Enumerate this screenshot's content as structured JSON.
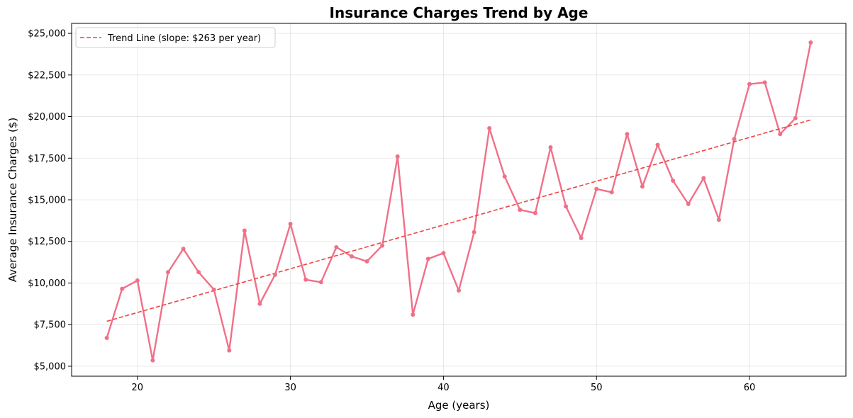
{
  "chart_data": {
    "type": "line",
    "title": "Insurance Charges Trend by Age",
    "xlabel": "Age (years)",
    "ylabel": "Average Insurance Charges ($)",
    "xlim": [
      15.7,
      66.3
    ],
    "ylim": [
      4400,
      25600
    ],
    "x_ticks": [
      20,
      30,
      40,
      50,
      60
    ],
    "y_ticks": [
      5000,
      7500,
      10000,
      12500,
      15000,
      17500,
      20000,
      22500,
      25000
    ],
    "y_tick_labels": [
      "$5,000",
      "$7,500",
      "$10,000",
      "$12,500",
      "$15,000",
      "$17,500",
      "$20,000",
      "$22,500",
      "$25,000"
    ],
    "grid": true,
    "legend_position": "top-left",
    "series": [
      {
        "x": [
          18,
          19,
          20,
          21,
          22,
          23,
          24,
          25,
          26,
          27,
          28,
          29,
          30,
          31,
          32,
          33,
          34,
          35,
          36,
          37,
          38,
          39,
          40,
          41,
          42,
          43,
          44,
          45,
          46,
          47,
          48,
          49,
          50,
          51,
          52,
          53,
          54,
          55,
          56,
          57,
          58,
          59,
          60,
          61,
          62,
          63,
          64
        ],
        "values": [
          6700,
          9650,
          10150,
          5350,
          10650,
          12050,
          10650,
          9600,
          5950,
          13150,
          8750,
          10500,
          13550,
          10200,
          10050,
          12150,
          11600,
          11300,
          12250,
          17600,
          8100,
          11450,
          11800,
          9550,
          13050,
          19300,
          16400,
          14400,
          14200,
          18150,
          14600,
          12700,
          15650,
          15450,
          18950,
          15800,
          18300,
          16150,
          14750,
          16300,
          13800,
          18650,
          21950,
          22050,
          18950,
          19900,
          24450
        ],
        "color": "#f07088"
      },
      {
        "name": "Trend Line (slope: $263 per year)",
        "x": [
          18,
          64
        ],
        "values": [
          7700,
          19800
        ],
        "color": "#ee4444",
        "style": "dashed"
      }
    ]
  }
}
